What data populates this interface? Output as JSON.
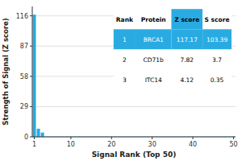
{
  "chart_data": {
    "type": "bar",
    "xlabel": "Signal Rank (Top 50)",
    "ylabel": "Strength of Signal (Z score)",
    "x": [
      1,
      2,
      3,
      4,
      5,
      6,
      7,
      8,
      9,
      10,
      11,
      12,
      13,
      14,
      15,
      16,
      17,
      18,
      19,
      20,
      21,
      22,
      23,
      24,
      25,
      26,
      27,
      28,
      29,
      30,
      31,
      32,
      33,
      34,
      35,
      36,
      37,
      38,
      39,
      40,
      41,
      42,
      43,
      44,
      45,
      46,
      47,
      48,
      49,
      50
    ],
    "values": [
      117.17,
      7.82,
      4.12,
      0.3,
      0.3,
      0.3,
      0.3,
      0.3,
      0.3,
      0.3,
      0.3,
      0.3,
      0.3,
      0.3,
      0.3,
      0.3,
      0.3,
      0.3,
      0.3,
      0.3,
      0.3,
      0.3,
      0.3,
      0.3,
      0.3,
      0.3,
      0.3,
      0.3,
      0.3,
      0.3,
      0.3,
      0.3,
      0.3,
      0.3,
      0.3,
      0.3,
      0.3,
      0.3,
      0.3,
      0.3,
      0.3,
      0.3,
      0.3,
      0.3,
      0.3,
      0.3,
      0.3,
      0.3,
      0.3,
      0.3
    ],
    "color": "#29ABE2",
    "xlim": [
      0.5,
      50.5
    ],
    "ylim": [
      0,
      125
    ],
    "xticks": [
      1,
      10,
      20,
      30,
      40,
      50
    ],
    "yticks": [
      0,
      29,
      58,
      87,
      116
    ],
    "grid": true,
    "table": [
      [
        "Rank",
        "Protein",
        "Z score",
        "S score"
      ],
      [
        "1",
        "BRCA1",
        "117.17",
        "103.39"
      ],
      [
        "2",
        "CD71b",
        "7.82",
        "3.7"
      ],
      [
        "3",
        "ITC14",
        "4.12",
        "0.35"
      ]
    ]
  }
}
